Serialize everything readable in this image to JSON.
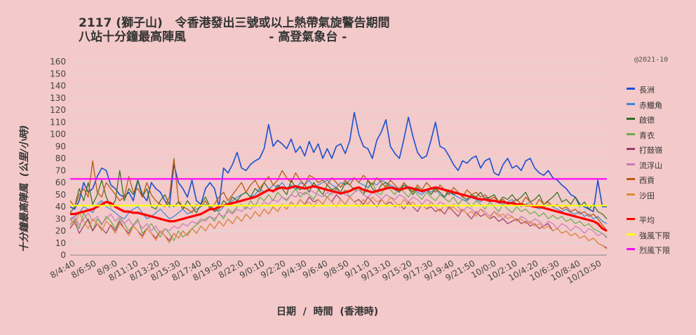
{
  "header": {
    "title_line1": "2117 (獅子山)   令香港發出三號或以上熱帶氣旋警告期間",
    "title_line2": "八站十分鐘最高陣風                    - 高登氣象台 -",
    "copyright": "@2021-10"
  },
  "axes": {
    "xlabel": "日期  /  時間  (香港時)",
    "ylabel": "十分鐘最高陣風  (公里/小時)"
  },
  "chart_data": {
    "type": "line",
    "ylim": [
      0,
      160
    ],
    "yticks": [
      0,
      10,
      20,
      30,
      40,
      50,
      60,
      70,
      80,
      90,
      100,
      110,
      120,
      130,
      140,
      150,
      160
    ],
    "x_tick_labels": [
      "8/4:40",
      "8/6:50",
      "8/9:0",
      "8/11:10",
      "8/13:20",
      "8/15:30",
      "8/17:40",
      "8/19:50",
      "8/22:0",
      "9/0:10",
      "9/2:20",
      "9/4:30",
      "9/6:40",
      "9/8:50",
      "9/11:0",
      "9/13:10",
      "9/15:20",
      "9/17:30",
      "9/19:40",
      "9/21:50",
      "10/0:0",
      "10/2:10",
      "10/4:20",
      "10/6:30",
      "10/8:40",
      "10/10:50"
    ],
    "grid": true,
    "legend_position": "right",
    "series": [
      {
        "name": "長洲",
        "color": "#1a4fd0",
        "width": 1.6,
        "values": [
          40,
          38,
          45,
          60,
          52,
          55,
          65,
          72,
          70,
          58,
          55,
          50,
          48,
          52,
          45,
          62,
          50,
          45,
          60,
          55,
          52,
          45,
          40,
          75,
          60,
          55,
          48,
          62,
          45,
          42,
          55,
          60,
          55,
          40,
          72,
          68,
          75,
          85,
          72,
          70,
          75,
          78,
          80,
          88,
          108,
          90,
          95,
          92,
          88,
          96,
          85,
          90,
          82,
          94,
          85,
          92,
          80,
          88,
          80,
          90,
          92,
          84,
          95,
          118,
          100,
          90,
          88,
          80,
          95,
          102,
          112,
          90,
          84,
          80,
          96,
          114,
          98,
          85,
          80,
          82,
          95,
          110,
          90,
          88,
          82,
          75,
          70,
          78,
          76,
          80,
          82,
          72,
          78,
          80,
          68,
          66,
          75,
          80,
          72,
          74,
          70,
          78,
          80,
          72,
          68,
          66,
          70,
          64,
          62,
          58,
          55,
          50,
          48,
          42,
          40,
          38,
          36,
          62,
          40,
          40
        ]
      },
      {
        "name": "赤鱲角",
        "color": "#3a86dc",
        "width": 1.2,
        "values": [
          30,
          32,
          35,
          40,
          38,
          35,
          42,
          45,
          40,
          38,
          35,
          32,
          30,
          35,
          38,
          40,
          35,
          30,
          32,
          35,
          38,
          34,
          30,
          32,
          35,
          38,
          34,
          36,
          38,
          40,
          42,
          40,
          38,
          36,
          40,
          42,
          45,
          48,
          50,
          52,
          48,
          50,
          55,
          52,
          54,
          58,
          56,
          60,
          55,
          58,
          54,
          60,
          58,
          62,
          56,
          58,
          60,
          62,
          58,
          56,
          60,
          58,
          62,
          64,
          60,
          58,
          56,
          60,
          58,
          62,
          60,
          58,
          56,
          54,
          58,
          56,
          55,
          52,
          50,
          54,
          52,
          55,
          50,
          48,
          52,
          50,
          48,
          46,
          45,
          48,
          46,
          44,
          48,
          46,
          45,
          43,
          42,
          44,
          46,
          42,
          40,
          42,
          44,
          40,
          38,
          40,
          42,
          40,
          38,
          36,
          38,
          35,
          34,
          36,
          32,
          34,
          30,
          32,
          28,
          26
        ]
      },
      {
        "name": "啟德",
        "color": "#2f6e1e",
        "width": 1.2,
        "values": [
          35,
          40,
          55,
          45,
          60,
          42,
          50,
          62,
          48,
          40,
          45,
          70,
          45,
          55,
          50,
          62,
          48,
          55,
          40,
          38,
          45,
          50,
          42,
          40,
          44,
          38,
          45,
          40,
          35,
          42,
          48,
          40,
          36,
          38,
          45,
          42,
          48,
          45,
          50,
          52,
          48,
          55,
          52,
          60,
          55,
          52,
          58,
          55,
          50,
          62,
          56,
          54,
          58,
          52,
          60,
          55,
          50,
          58,
          54,
          56,
          52,
          60,
          58,
          54,
          56,
          50,
          62,
          55,
          52,
          58,
          60,
          56,
          54,
          52,
          58,
          55,
          50,
          56,
          52,
          54,
          50,
          55,
          52,
          48,
          54,
          50,
          52,
          48,
          46,
          50,
          48,
          52,
          46,
          48,
          50,
          44,
          48,
          46,
          50,
          45,
          48,
          52,
          44,
          46,
          50,
          42,
          45,
          48,
          52,
          44,
          46,
          42,
          48,
          40,
          44,
          38,
          42,
          36,
          34,
          30
        ]
      },
      {
        "name": "青衣",
        "color": "#6aab4e",
        "width": 1.2,
        "values": [
          25,
          30,
          22,
          35,
          28,
          20,
          30,
          25,
          32,
          28,
          22,
          30,
          26,
          20,
          25,
          30,
          18,
          22,
          26,
          20,
          15,
          22,
          18,
          12,
          20,
          15,
          18,
          22,
          25,
          28,
          30,
          32,
          28,
          35,
          30,
          38,
          35,
          40,
          42,
          38,
          45,
          40,
          48,
          45,
          50,
          45,
          52,
          48,
          45,
          50,
          55,
          48,
          52,
          50,
          46,
          54,
          50,
          48,
          52,
          55,
          50,
          54,
          48,
          52,
          56,
          50,
          55,
          60,
          52,
          50,
          58,
          54,
          50,
          56,
          52,
          48,
          54,
          50,
          46,
          52,
          48,
          45,
          50,
          47,
          44,
          48,
          42,
          46,
          44,
          40,
          45,
          42,
          38,
          44,
          40,
          36,
          42,
          38,
          35,
          40,
          36,
          38,
          34,
          36,
          32,
          35,
          30,
          33,
          30,
          32,
          28,
          30,
          26,
          28,
          24,
          26,
          22,
          20,
          18,
          15
        ]
      },
      {
        "name": "打鼓嶺",
        "color": "#9a3b6c",
        "width": 1.2,
        "values": [
          22,
          28,
          18,
          24,
          30,
          20,
          26,
          22,
          18,
          25,
          20,
          28,
          22,
          18,
          24,
          20,
          16,
          22,
          18,
          14,
          20,
          16,
          12,
          18,
          14,
          20,
          16,
          22,
          18,
          24,
          20,
          26,
          22,
          28,
          24,
          30,
          26,
          32,
          28,
          34,
          30,
          36,
          32,
          38,
          34,
          40,
          36,
          42,
          38,
          44,
          40,
          46,
          42,
          48,
          44,
          46,
          42,
          48,
          44,
          50,
          46,
          42,
          48,
          44,
          46,
          42,
          48,
          44,
          40,
          46,
          42,
          44,
          40,
          42,
          38,
          44,
          40,
          36,
          42,
          38,
          40,
          36,
          38,
          34,
          40,
          36,
          32,
          38,
          34,
          30,
          36,
          32,
          34,
          30,
          32,
          28,
          30,
          26,
          28,
          30,
          26,
          28,
          24,
          26,
          22,
          24,
          26,
          20,
          22,
          18,
          20,
          16,
          18,
          14,
          16,
          12,
          14,
          10,
          8,
          6
        ]
      },
      {
        "name": "流浮山",
        "color": "#c97bb8",
        "width": 1.2,
        "values": [
          28,
          32,
          25,
          30,
          35,
          28,
          32,
          26,
          30,
          34,
          28,
          32,
          26,
          30,
          24,
          28,
          22,
          26,
          20,
          24,
          18,
          22,
          20,
          24,
          22,
          26,
          24,
          28,
          26,
          30,
          28,
          32,
          30,
          34,
          32,
          36,
          34,
          38,
          36,
          40,
          38,
          42,
          40,
          44,
          42,
          46,
          44,
          48,
          46,
          50,
          48,
          52,
          50,
          54,
          52,
          50,
          48,
          52,
          50,
          54,
          52,
          50,
          48,
          52,
          54,
          50,
          48,
          52,
          50,
          46,
          50,
          48,
          46,
          50,
          48,
          44,
          48,
          46,
          42,
          46,
          44,
          40,
          44,
          42,
          38,
          42,
          40,
          36,
          40,
          38,
          34,
          38,
          36,
          32,
          36,
          34,
          30,
          34,
          32,
          28,
          32,
          30,
          26,
          30,
          28,
          24,
          28,
          26,
          22,
          26,
          24,
          20,
          24,
          22,
          18,
          22,
          20,
          16,
          18,
          14
        ]
      },
      {
        "name": "西貢",
        "color": "#b85c10",
        "width": 1.3,
        "values": [
          45,
          40,
          50,
          55,
          48,
          78,
          52,
          48,
          60,
          55,
          50,
          45,
          48,
          65,
          52,
          55,
          48,
          60,
          50,
          45,
          42,
          40,
          48,
          80,
          45,
          40,
          38,
          35,
          42,
          40,
          45,
          38,
          42,
          48,
          52,
          45,
          50,
          55,
          60,
          52,
          58,
          62,
          55,
          60,
          65,
          58,
          62,
          70,
          64,
          60,
          68,
          62,
          58,
          66,
          64,
          60,
          62,
          58,
          64,
          60,
          56,
          62,
          58,
          64,
          60,
          66,
          62,
          58,
          64,
          60,
          56,
          62,
          58,
          54,
          60,
          56,
          52,
          58,
          54,
          60,
          56,
          52,
          58,
          54,
          50,
          56,
          52,
          48,
          54,
          50,
          52,
          48,
          50,
          46,
          48,
          44,
          46,
          42,
          44,
          46,
          42,
          48,
          44,
          40,
          46,
          42,
          44,
          40,
          42,
          38,
          40,
          36,
          38,
          34,
          36,
          32,
          34,
          30,
          25,
          20
        ]
      },
      {
        "name": "沙田",
        "color": "#e08a3a",
        "width": 1.2,
        "values": [
          30,
          25,
          35,
          28,
          22,
          30,
          26,
          20,
          28,
          24,
          18,
          26,
          22,
          16,
          24,
          20,
          14,
          22,
          18,
          12,
          20,
          16,
          10,
          18,
          14,
          20,
          16,
          22,
          18,
          24,
          20,
          26,
          22,
          28,
          24,
          30,
          26,
          32,
          28,
          34,
          30,
          36,
          32,
          38,
          34,
          40,
          36,
          42,
          38,
          44,
          40,
          46,
          42,
          44,
          40,
          46,
          42,
          48,
          44,
          40,
          46,
          42,
          48,
          44,
          40,
          46,
          42,
          48,
          44,
          46,
          42,
          48,
          44,
          40,
          46,
          42,
          44,
          40,
          42,
          38,
          44,
          40,
          36,
          42,
          38,
          40,
          36,
          38,
          34,
          36,
          32,
          38,
          34,
          30,
          36,
          32,
          34,
          30,
          32,
          28,
          30,
          26,
          28,
          24,
          26,
          22,
          24,
          20,
          22,
          18,
          20,
          16,
          18,
          14,
          16,
          12,
          14,
          10,
          8,
          5
        ]
      },
      {
        "name": "平均",
        "color": "#ff0000",
        "width": 3.2,
        "values": [
          34,
          34,
          35,
          36,
          37,
          38,
          40,
          42,
          44,
          43,
          40,
          38,
          36,
          36,
          35,
          35,
          34,
          33,
          32,
          31,
          30,
          29,
          28,
          28,
          29,
          30,
          31,
          32,
          33,
          34,
          36,
          38,
          38,
          40,
          41,
          42,
          43,
          44,
          45,
          46,
          47,
          48,
          50,
          52,
          54,
          53,
          55,
          56,
          55,
          56,
          57,
          56,
          55,
          56,
          57,
          56,
          55,
          54,
          53,
          52,
          51,
          52,
          53,
          55,
          56,
          54,
          53,
          52,
          53,
          54,
          55,
          56,
          55,
          54,
          55,
          56,
          55,
          54,
          53,
          54,
          55,
          56,
          55,
          54,
          53,
          52,
          51,
          50,
          49,
          48,
          47,
          46,
          46,
          45,
          45,
          44,
          44,
          43,
          43,
          42,
          42,
          41,
          41,
          40,
          40,
          39,
          38,
          37,
          36,
          35,
          34,
          33,
          32,
          31,
          30,
          29,
          28,
          26,
          22,
          20
        ]
      },
      {
        "name": "強風下限",
        "color": "#ffff00",
        "width": 2.2,
        "values": [
          41,
          41
        ],
        "reference": true
      },
      {
        "name": "烈風下限",
        "color": "#ff00ff",
        "width": 2.2,
        "values": [
          63,
          63
        ],
        "reference": true
      }
    ]
  }
}
